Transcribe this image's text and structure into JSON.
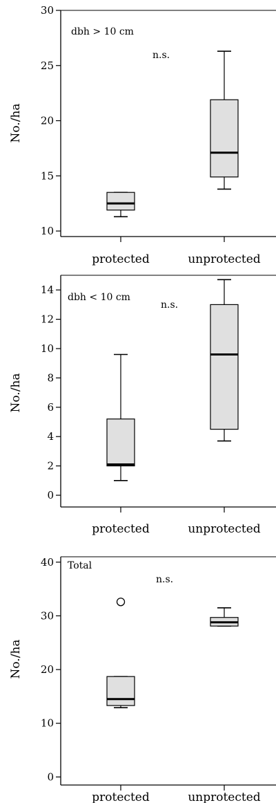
{
  "chart_data": [
    {
      "type": "box",
      "label": "dbh > 10 cm",
      "note": "n.s.",
      "ylabel": "No./ha",
      "ylim": [
        9.5,
        30
      ],
      "yticks": [
        10,
        15,
        20,
        25,
        30
      ],
      "categories": [
        "protected",
        "unprotected"
      ],
      "boxes": [
        {
          "category": "protected",
          "min": 11.3,
          "q1": 11.9,
          "median": 12.5,
          "q3": 13.5,
          "max": 13.5,
          "outliers": []
        },
        {
          "category": "unprotected",
          "min": 13.8,
          "q1": 14.9,
          "median": 17.1,
          "q3": 21.9,
          "max": 26.3,
          "outliers": []
        }
      ]
    },
    {
      "type": "box",
      "label": "dbh < 10 cm",
      "note": "n.s.",
      "ylabel": "No./ha",
      "ylim": [
        -0.8,
        15
      ],
      "yticks": [
        0,
        2,
        4,
        6,
        8,
        10,
        12,
        14
      ],
      "categories": [
        "protected",
        "unprotected"
      ],
      "boxes": [
        {
          "category": "protected",
          "min": 1.0,
          "q1": 2.0,
          "median": 2.1,
          "q3": 5.2,
          "max": 9.6,
          "outliers": []
        },
        {
          "category": "unprotected",
          "min": 3.7,
          "q1": 4.5,
          "median": 9.6,
          "q3": 13.0,
          "max": 14.7,
          "outliers": []
        }
      ]
    },
    {
      "type": "box",
      "label": "Total",
      "note": "n.s.",
      "ylabel": "No./ha",
      "ylim": [
        -1.5,
        41
      ],
      "yticks": [
        0,
        10,
        20,
        30,
        40
      ],
      "categories": [
        "protected",
        "unprotected"
      ],
      "boxes": [
        {
          "category": "protected",
          "min": 12.9,
          "q1": 13.3,
          "median": 14.5,
          "q3": 18.7,
          "max": 18.7,
          "outliers": [
            32.6
          ]
        },
        {
          "category": "unprotected",
          "min": 28.1,
          "q1": 28.1,
          "median": 28.8,
          "q3": 29.7,
          "max": 31.5,
          "outliers": []
        }
      ]
    }
  ]
}
